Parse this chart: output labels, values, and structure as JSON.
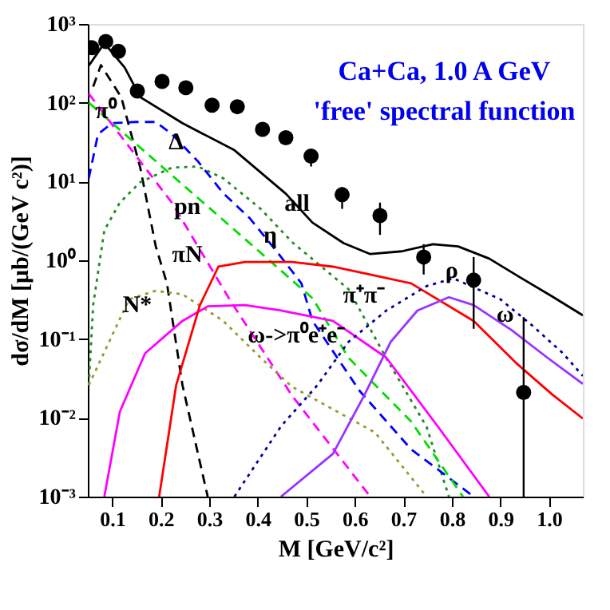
{
  "chart_data": {
    "type": "line",
    "title": "Ca+Ca,  1.0 A GeV",
    "subtitle": "'free' spectral function",
    "xlabel": "M [GeV/c²]",
    "ylabel": "dσ/dM  [μb/(GeV c²)]",
    "xlim": [
      0.05,
      1.07
    ],
    "xticks": [
      0.1,
      0.2,
      0.3,
      0.4,
      0.5,
      0.6,
      0.7,
      0.8,
      0.9,
      {
        "value": 1.0,
        "label": "1.0"
      }
    ],
    "ylim": [
      0.001,
      1000
    ],
    "yticks": [
      {
        "value": 0.001,
        "label": "10⁻³"
      },
      {
        "value": 0.01,
        "label": "10⁻²"
      },
      {
        "value": 0.1,
        "label": "10⁻¹"
      },
      {
        "value": 1,
        "label": "10⁰"
      },
      {
        "value": 10,
        "label": "10¹"
      },
      {
        "value": 100,
        "label": "10²"
      },
      {
        "value": 1000,
        "label": "10³"
      }
    ],
    "log": "y",
    "grid": false,
    "series": [
      {
        "type": "line",
        "color": "#000000",
        "line_style": "solid",
        "x": [
          0.052,
          0.084,
          0.126,
          0.158,
          0.245,
          0.352,
          0.458,
          0.513,
          0.577,
          0.632,
          0.697,
          0.761,
          0.813,
          0.877,
          0.942,
          1.006,
          1.07
        ],
        "values": [
          295,
          570,
          280,
          118,
          55,
          25,
          7,
          3.0,
          1.65,
          1.2,
          1.3,
          1.6,
          1.5,
          1.05,
          0.6,
          0.35,
          0.2
        ]
      },
      {
        "type": "line",
        "color": "#000000",
        "line_style": "dashed",
        "x": [
          0.061,
          0.077,
          0.119,
          0.158,
          0.19,
          0.213,
          0.245,
          0.277,
          0.297
        ],
        "values": [
          160,
          300,
          117,
          15,
          1.5,
          0.51,
          0.026,
          0.0035,
          0.001
        ]
      },
      {
        "color": "#228b22",
        "line_style": "dotted",
        "x": [
          0.052,
          0.061,
          0.084,
          0.116,
          0.158,
          0.223,
          0.277,
          0.329,
          0.406,
          0.471,
          0.587,
          0.665,
          0.748,
          0.794
        ],
        "values": [
          0.026,
          0.27,
          2.4,
          5.4,
          9.8,
          15,
          15.5,
          11,
          4.5,
          1.7,
          0.43,
          0.057,
          0.0077,
          0.001
        ]
      },
      {
        "color": "#0000ff",
        "line_style": "dashed",
        "x": [
          0.052,
          0.071,
          0.1,
          0.148,
          0.19,
          0.223,
          0.277,
          0.329,
          0.384,
          0.439,
          0.49,
          0.513,
          0.61,
          0.716,
          0.845
        ],
        "values": [
          11,
          40,
          55,
          57,
          57,
          40,
          18,
          7.1,
          3.4,
          1.3,
          0.51,
          0.17,
          0.022,
          0.004,
          0.001
        ]
      },
      {
        "color": "#00dd00",
        "line_style": "dashed",
        "x": [
          0.052,
          0.2,
          0.35,
          0.513,
          0.587,
          0.716,
          0.823
        ],
        "values": [
          100,
          16,
          2.5,
          0.33,
          0.058,
          0.009,
          0.001
        ]
      },
      {
        "color": "#ff00ff",
        "line_style": "dashed",
        "x": [
          0.052,
          0.103,
          0.223,
          0.342,
          0.471,
          0.632
        ],
        "values": [
          130,
          50,
          5.4,
          0.32,
          0.019,
          0.001
        ]
      },
      {
        "color": "#999933",
        "line_style": "dotted",
        "x": [
          0.052,
          0.135,
          0.19,
          0.245,
          0.329,
          0.406,
          0.47,
          0.642,
          0.748
        ],
        "values": [
          0.026,
          0.32,
          0.41,
          0.37,
          0.17,
          0.058,
          0.025,
          0.0065,
          0.001
        ]
      },
      {
        "color": "#ff00ff",
        "line_style": "solid",
        "x": [
          0.084,
          0.116,
          0.168,
          0.245,
          0.297,
          0.374,
          0.448,
          0.555,
          0.665,
          0.771,
          0.877
        ],
        "values": [
          0.001,
          0.012,
          0.066,
          0.17,
          0.26,
          0.27,
          0.23,
          0.17,
          0.058,
          0.0078,
          0.001
        ]
      },
      {
        "color": "#ff0000",
        "line_style": "solid",
        "x": [
          0.197,
          0.232,
          0.281,
          0.319,
          0.374,
          0.471,
          0.555,
          0.632,
          0.716,
          0.845,
          0.932,
          1.006,
          1.07
        ],
        "values": [
          0.001,
          0.026,
          0.27,
          0.83,
          0.95,
          0.95,
          0.83,
          0.66,
          0.51,
          0.17,
          0.05,
          0.02,
          0.0098
        ]
      },
      {
        "color": "#000099",
        "line_style": "dotted",
        "x": [
          0.352,
          0.448,
          0.523,
          0.587,
          0.665,
          0.748,
          0.803,
          0.9,
          0.965,
          1.029,
          1.07
        ],
        "values": [
          0.001,
          0.0078,
          0.026,
          0.092,
          0.23,
          0.47,
          0.59,
          0.32,
          0.15,
          0.066,
          0.034
        ]
      },
      {
        "color": "#9933ff",
        "line_style": "solid",
        "x": [
          0.448,
          0.555,
          0.619,
          0.674,
          0.729,
          0.794,
          0.845,
          0.923,
          0.997,
          1.07
        ],
        "values": [
          0.001,
          0.0035,
          0.019,
          0.092,
          0.23,
          0.34,
          0.27,
          0.13,
          0.058,
          0.027
        ]
      },
      {
        "type": "scatter",
        "color": "#000000",
        "marker": "circle",
        "x": [
          0.058,
          0.087,
          0.113,
          0.152,
          0.203,
          0.252,
          0.306,
          0.358,
          0.41,
          0.458,
          0.51,
          0.574,
          0.652,
          0.742,
          0.845,
          0.948
        ],
        "values": [
          500,
          600,
          450,
          141,
          186,
          155,
          93,
          89,
          46,
          36,
          21,
          6.8,
          3.7,
          1.1,
          0.56,
          0.021
        ],
        "errors": [
          null,
          null,
          null,
          null,
          null,
          null,
          null,
          null,
          null,
          null,
          [
            15.5,
            25
          ],
          [
            4.5,
            8.5
          ],
          [
            2.1,
            5.4
          ],
          [
            0.66,
            1.6
          ],
          [
            0.135,
            1.1
          ],
          [
            0.001,
            0.19
          ]
        ]
      }
    ],
    "annotations": [
      {
        "text": "π⁰",
        "x": 0.087,
        "y": 80
      },
      {
        "text": "Δ",
        "x": 0.232,
        "y": 32
      },
      "pn",
      {
        "text": "η",
        "x": 0.426,
        "y": 2.1
      },
      {
        "text": "all",
        "x": 0.481,
        "y": 5.4
      },
      "πN",
      {
        "text": "N*",
        "x": 0.152,
        "y": 0.28
      },
      "ω->π⁰e⁺e⁻",
      "π⁺π⁻",
      {
        "text": "ρ",
        "x": 0.8,
        "y": 0.75
      },
      {
        "text": "ω",
        "x": 0.91,
        "y": 0.21
      }
    ]
  }
}
